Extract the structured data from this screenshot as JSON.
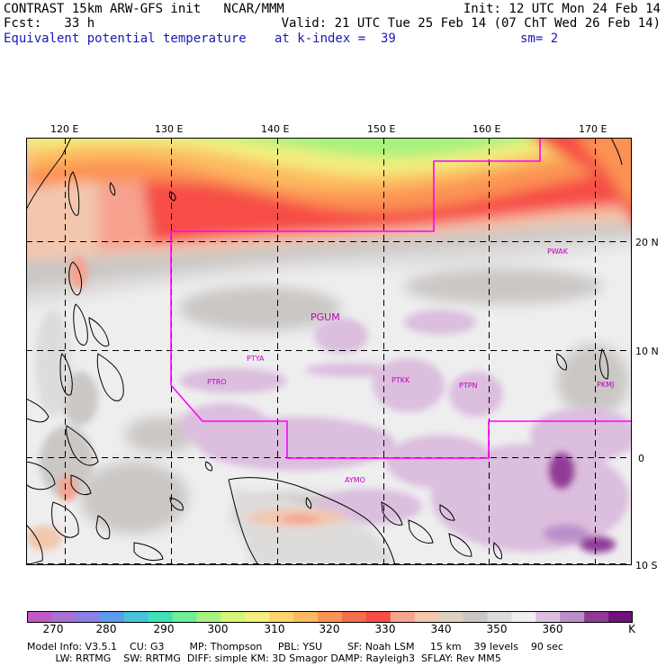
{
  "header": {
    "model_line": "CONTRAST 15km ARW-GFS init   NCAR/MMM",
    "fcst_line": "Fcst:   33 h",
    "field": "Equivalent potential temperature",
    "init": "Init: 12 UTC Mon 24 Feb 14",
    "valid": "Valid: 21 UTC Tue 25 Feb 14 (07 ChT Wed 26 Feb 14)",
    "level": "at k-index =  39",
    "smooth": "sm= 2"
  },
  "map": {
    "lon_labels": [
      "120 E",
      "130 E",
      "140 E",
      "150 E",
      "160 E",
      "170 E"
    ],
    "lat_labels": [
      "20 N",
      "10 N",
      "0",
      "10 S"
    ],
    "stations": [
      {
        "id": "st-pgum",
        "label": "PGUM"
      },
      {
        "id": "st-pwak",
        "label": "PWAK"
      },
      {
        "id": "st-ptya",
        "label": "PTYA"
      },
      {
        "id": "st-ptro",
        "label": "PTRO"
      },
      {
        "id": "st-ptkk",
        "label": "PTKK"
      },
      {
        "id": "st-ptpn",
        "label": "PTPN"
      },
      {
        "id": "st-pkmj",
        "label": "PKMJ"
      },
      {
        "id": "st-aymo",
        "label": "AYMO"
      }
    ],
    "colors": {
      "boundary": "#ff00ff",
      "station": "#c000c0"
    }
  },
  "colorbar": {
    "colors": [
      "#c25ac6",
      "#a971d2",
      "#8c7fe6",
      "#5b9bf0",
      "#46c3dc",
      "#3ee2b4",
      "#6eee96",
      "#a6f27e",
      "#d6f574",
      "#f3f080",
      "#fbd46c",
      "#fdb95e",
      "#fb9354",
      "#f56e4e",
      "#f94d48",
      "#f7a590",
      "#f2c7ad",
      "#dfd0c0",
      "#cac7c4",
      "#dddcdc",
      "#efeef0",
      "#dcbede",
      "#b98fca",
      "#903a96",
      "#70127e"
    ],
    "ticks": [
      "270",
      "280",
      "290",
      "300",
      "310",
      "320",
      "330",
      "340",
      "350",
      "360",
      "K"
    ]
  },
  "model_info": {
    "line1": "Model Info: V3.5.1    CU: G3        MP: Thompson     PBL: YSU        SF: Noah LSM     15 km    39 levels    90 sec",
    "line2": "         LW: RRTMG    SW: RRTMG  DIFF: simple KM: 3D Smagor DAMP: Rayleigh3  SFLAY: Rev MM5"
  }
}
